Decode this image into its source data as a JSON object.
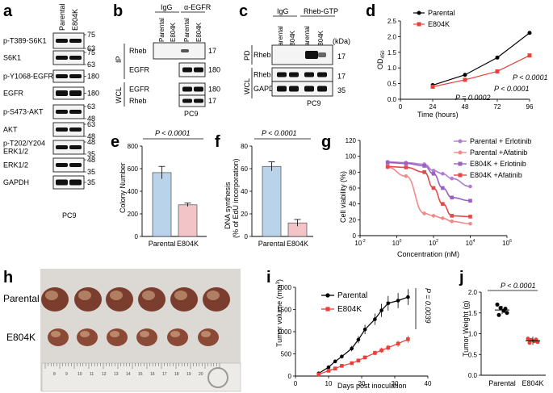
{
  "panels": {
    "a": {
      "letter": "a",
      "header": [
        "Parental",
        "E804K"
      ],
      "footer": "PC9",
      "rows": [
        {
          "label": "p-T389-S6K1",
          "mw": [
            "75",
            "63"
          ]
        },
        {
          "label": "S6K1",
          "mw": [
            "75",
            "63"
          ]
        },
        {
          "label": "p-Y1068-EGFR",
          "mw": [
            "180"
          ]
        },
        {
          "label": "EGFR",
          "mw": [
            "180"
          ]
        },
        {
          "label": "p-S473-AKT",
          "mw": [
            "63",
            "48"
          ]
        },
        {
          "label": "AKT",
          "mw": [
            "63",
            "48"
          ]
        },
        {
          "label": "p-T202/Y204\nERK1/2",
          "mw": [
            "48",
            "35"
          ]
        },
        {
          "label": "ERK1/2",
          "mw": [
            "48",
            "35"
          ]
        },
        {
          "label": "GAPDH",
          "mw": [
            "35"
          ]
        }
      ]
    },
    "b": {
      "letter": "b",
      "groups": [
        "IgG",
        "α-EGFR"
      ],
      "lanes": [
        "Parental",
        "E804K",
        "Parental",
        "E804K"
      ],
      "sections": [
        "IP",
        "WCL"
      ],
      "rows": [
        {
          "label": "Rheb",
          "mw": "17"
        },
        {
          "label": "EGFR",
          "mw": "180"
        },
        {
          "label": "EGFR",
          "mw": "180"
        },
        {
          "label": "Rheb",
          "mw": "17"
        }
      ],
      "footer": "PC9"
    },
    "c": {
      "letter": "c",
      "groups": [
        "IgG",
        "Rheb-GTP"
      ],
      "lanes": [
        "Parental",
        "E804K",
        "Parental",
        "E804K"
      ],
      "kda": "(kDa)",
      "sections": [
        "PD",
        "WCL"
      ],
      "rows": [
        {
          "label": "Rheb",
          "mw": "17"
        },
        {
          "label": "Rheb",
          "mw": "17"
        },
        {
          "label": "GAPDH",
          "mw": "35"
        }
      ],
      "footer": "PC9"
    },
    "e": {
      "letter": "e"
    },
    "f": {
      "letter": "f"
    },
    "h": {
      "letter": "h",
      "rows": [
        "Parental",
        "E804K"
      ],
      "ruler_numbers": [
        "8",
        "9",
        "10",
        "11",
        "12",
        "13",
        "14",
        "15",
        "16",
        "17",
        "18",
        "19",
        "20"
      ]
    }
  },
  "chart_data": [
    {
      "id": "d",
      "letter": "d",
      "type": "line",
      "xlabel": "Time (hours)",
      "ylabel": "OD",
      "ylabel_sub": "450",
      "x": [
        24,
        48,
        72,
        96
      ],
      "xticks": [
        "0",
        "24",
        "48",
        "72",
        "96"
      ],
      "xlim": [
        0,
        96
      ],
      "ylim": [
        0,
        2.5
      ],
      "yticks": [
        "0.0",
        "0.5",
        "1.0",
        "1.5",
        "2.0",
        "2.5"
      ],
      "series": [
        {
          "name": "Parental",
          "values": [
            0.45,
            0.78,
            1.33,
            2.12
          ],
          "color": "#000000"
        },
        {
          "name": "E804K",
          "values": [
            0.4,
            0.62,
            0.89,
            1.4
          ],
          "color": "#e8403a"
        }
      ],
      "annotations": [
        "P = 0.0002",
        "P < 0.0001",
        "P < 0.0001"
      ]
    },
    {
      "id": "e",
      "type": "bar",
      "categories": [
        "Parental",
        "E804K"
      ],
      "values": [
        565,
        280
      ],
      "errors": [
        55,
        15
      ],
      "ylabel": "Colony Number",
      "ylim": [
        0,
        800
      ],
      "yticks": [
        "0",
        "200",
        "400",
        "600",
        "800"
      ],
      "annotation": "P < 0.0001",
      "colors": [
        "#b9d3ea",
        "#f2c4c7"
      ]
    },
    {
      "id": "f",
      "type": "bar",
      "categories": [
        "Parental",
        "E804K"
      ],
      "values": [
        62,
        12
      ],
      "errors": [
        4,
        3
      ],
      "ylabel": "DNA synthesis",
      "ylabel2": "(% of EdU incorporation)",
      "ylim": [
        0,
        80
      ],
      "yticks": [
        "0",
        "20",
        "40",
        "60",
        "80"
      ],
      "annotation": "P < 0.0001",
      "colors": [
        "#b9d3ea",
        "#f2c4c7"
      ]
    },
    {
      "id": "g",
      "letter": "g",
      "type": "line",
      "xlabel": "Concentration (nM)",
      "ylabel": "Cell viability (%)",
      "xscale": "log",
      "xlim": [
        -2,
        6
      ],
      "xticks": [
        "-2",
        "0",
        "2",
        "4",
        "6"
      ],
      "ylim": [
        0,
        120
      ],
      "yticks": [
        "0",
        "20",
        "40",
        "60",
        "80",
        "100",
        "120"
      ],
      "series": [
        {
          "name": "Parental + Erlotinib",
          "color": "#b37bd4",
          "x": [
            -0.5,
            0.5,
            1.5,
            2,
            2.5,
            3,
            4
          ],
          "values": [
            93,
            92,
            90,
            82,
            78,
            72,
            62
          ],
          "marker": "circle"
        },
        {
          "name": "Parental +Afatinib",
          "color": "#f08a8a",
          "x": [
            -0.5,
            0.5,
            1.5,
            2,
            2.5,
            3,
            4
          ],
          "values": [
            86,
            75,
            28,
            25,
            22,
            18,
            15
          ],
          "marker": "circle"
        },
        {
          "name": "E804K + Erlotinib",
          "color": "#9a62c0",
          "x": [
            -0.5,
            0.5,
            1.5,
            2,
            2.5,
            3,
            4
          ],
          "values": [
            92,
            91,
            88,
            78,
            60,
            48,
            44
          ],
          "marker": "square"
        },
        {
          "name": "E804K +Afatinib",
          "color": "#e14a4a",
          "x": [
            -0.5,
            0.5,
            1.5,
            2,
            2.5,
            3,
            4
          ],
          "values": [
            87,
            86,
            80,
            60,
            40,
            25,
            24
          ],
          "marker": "square"
        }
      ]
    },
    {
      "id": "i",
      "letter": "i",
      "type": "line",
      "xlabel": "Days post inoculation",
      "ylabel": "Tumor volume (mm",
      "ylabel_sup": "3",
      "ylabel_end": ")",
      "x": [
        7,
        10,
        12,
        14,
        17,
        19,
        21,
        24,
        26,
        28,
        31,
        34
      ],
      "xlim": [
        0,
        40
      ],
      "xticks": [
        "0",
        "10",
        "20",
        "30",
        "40"
      ],
      "ylim": [
        0,
        2000
      ],
      "yticks": [
        "0",
        "500",
        "1000",
        "1500",
        "2000"
      ],
      "series": [
        {
          "name": "Parental",
          "color": "#000000",
          "values": [
            60,
            200,
            330,
            440,
            620,
            820,
            1050,
            1280,
            1480,
            1640,
            1700,
            1780
          ]
        },
        {
          "name": "E804K",
          "color": "#e8403a",
          "values": [
            40,
            120,
            170,
            230,
            290,
            350,
            420,
            520,
            580,
            640,
            730,
            830
          ]
        }
      ],
      "annotation": "P = 0.0039"
    },
    {
      "id": "j",
      "letter": "j",
      "type": "scatter",
      "categories": [
        "Parental",
        "E804K"
      ],
      "values": [
        [
          1.7,
          1.62,
          1.55,
          1.5,
          1.45,
          1.6
        ],
        [
          0.88,
          0.85,
          0.82,
          0.8,
          0.78,
          0.86
        ]
      ],
      "means": [
        1.57,
        0.83
      ],
      "ylabel": "Tumor Weight (g)",
      "ylim": [
        0,
        2.0
      ],
      "yticks": [
        "0.0",
        "0.5",
        "1.0",
        "1.5",
        "2.0"
      ],
      "annotation": "P < 0.0001",
      "colors": [
        "#000000",
        "#e8403a"
      ]
    }
  ]
}
